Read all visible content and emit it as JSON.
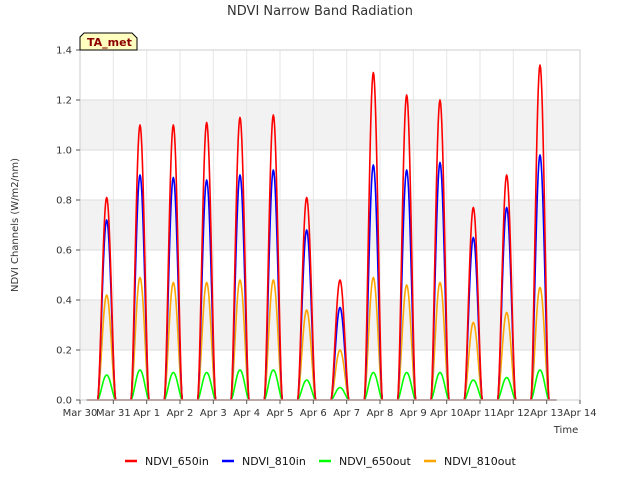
{
  "chart_data": {
    "type": "line",
    "title": "NDVI Narrow Band Radiation",
    "xlabel": "Time",
    "ylabel": "NDVI Channels (W/m2/nm)",
    "ylim": [
      0,
      1.4
    ],
    "xlim": [
      0,
      15
    ],
    "y_ticks": [
      0.0,
      0.2,
      0.4,
      0.6,
      0.8,
      1.0,
      1.2,
      1.4
    ],
    "y_tick_labels": [
      "0.0",
      "0.2",
      "0.4",
      "0.6",
      "0.8",
      "1.0",
      "1.2",
      "1.4"
    ],
    "x_tick_labels": [
      "Mar 30",
      "Mar 31",
      "Apr 1",
      "Apr 2",
      "Apr 3",
      "Apr 4",
      "Apr 5",
      "Apr 6",
      "Apr 7",
      "Apr 8",
      "Apr 9",
      "Apr 10",
      "Apr 11",
      "Apr 12",
      "Apr 13",
      "Apr 14"
    ],
    "grid": true,
    "badge": "TA_met",
    "legend_position": "bottom-center",
    "day_centers": [
      0.8,
      1.8,
      2.8,
      3.8,
      4.8,
      5.8,
      6.8,
      7.8,
      8.8,
      9.8,
      10.8,
      11.8,
      12.8,
      13.8
    ],
    "series": [
      {
        "name": "NDVI_650in",
        "color": "#ff0000",
        "peaks": [
          0.81,
          1.1,
          1.1,
          1.11,
          1.13,
          1.14,
          0.81,
          0.48,
          1.31,
          1.22,
          1.2,
          0.77,
          0.9,
          1.34
        ]
      },
      {
        "name": "NDVI_810in",
        "color": "#0000ff",
        "peaks": [
          0.72,
          0.9,
          0.89,
          0.88,
          0.9,
          0.92,
          0.68,
          0.37,
          0.94,
          0.92,
          0.95,
          0.65,
          0.77,
          0.98
        ]
      },
      {
        "name": "NDVI_650out",
        "color": "#00ff00",
        "peaks": [
          0.1,
          0.12,
          0.11,
          0.11,
          0.12,
          0.12,
          0.08,
          0.05,
          0.11,
          0.11,
          0.11,
          0.08,
          0.09,
          0.12
        ]
      },
      {
        "name": "NDVI_810out",
        "color": "#ffa500",
        "peaks": [
          0.42,
          0.49,
          0.47,
          0.47,
          0.48,
          0.48,
          0.36,
          0.2,
          0.49,
          0.46,
          0.47,
          0.31,
          0.35,
          0.45
        ]
      }
    ]
  }
}
